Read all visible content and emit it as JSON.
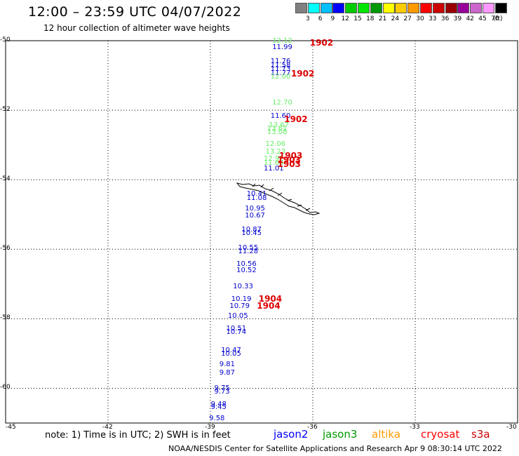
{
  "title": "12:00 – 23:59 UTC 04/07/2022",
  "subtitle": "12 hour collection of altimeter wave heights",
  "colorbar": {
    "unit": "(ft)",
    "colors": [
      "#808080",
      "#00ffff",
      "#00bfff",
      "#0000ff",
      "#00cc00",
      "#00e600",
      "#009900",
      "#ffff00",
      "#ffcc00",
      "#ff9900",
      "#ff0000",
      "#cc0000",
      "#990000",
      "#990099",
      "#cc66cc",
      "#ff99ff",
      "#000000"
    ],
    "labels": [
      "3",
      "6",
      "9",
      "12",
      "15",
      "18",
      "21",
      "24",
      "27",
      "30",
      "33",
      "36",
      "39",
      "42",
      "45",
      "70"
    ]
  },
  "axes": {
    "lat_labels": [
      "-50",
      "-52",
      "-54",
      "-56",
      "-58",
      "-60"
    ],
    "lon_labels": [
      "-45",
      "-42",
      "-39",
      "-36",
      "-33",
      "-30"
    ]
  },
  "note": "note:  1) Time is in UTC;  2) SWH is in feet",
  "legend": [
    {
      "name": "jason2",
      "color": "#0000ff"
    },
    {
      "name": "jason3",
      "color": "#009900"
    },
    {
      "name": "altika",
      "color": "#ff9900"
    },
    {
      "name": "cryosat",
      "color": "#ff0000"
    },
    {
      "name": "s3a",
      "color": "#cc0000"
    }
  ],
  "footer": "NOAA/NESDIS Center for Satellite Applications and Research    Apr  9 08:30:14 UTC 2022",
  "observations": [
    {
      "lon": -36.9,
      "lat": -50.05,
      "t": "12.12",
      "c": "#66ee66"
    },
    {
      "lon": -36.9,
      "lat": -50.22,
      "t": "11.99",
      "c": "#0000cc"
    },
    {
      "lon": -36.95,
      "lat": -50.62,
      "t": "11.76",
      "c": "#0000cc"
    },
    {
      "lon": -36.95,
      "lat": -50.74,
      "t": "11.58",
      "c": "#0000cc"
    },
    {
      "lon": -36.95,
      "lat": -50.84,
      "t": "11.73",
      "c": "#0000cc"
    },
    {
      "lon": -36.95,
      "lat": -50.96,
      "t": "11.77",
      "c": "#0000cc"
    },
    {
      "lon": -36.95,
      "lat": -51.07,
      "t": "12.00",
      "c": "#66ee66"
    },
    {
      "lon": -36.9,
      "lat": -51.82,
      "t": "12.70",
      "c": "#66ee66"
    },
    {
      "lon": -36.95,
      "lat": -52.2,
      "t": "11.60",
      "c": "#0000cc"
    },
    {
      "lon": -37.0,
      "lat": -52.47,
      "t": "13.67",
      "c": "#66ee66"
    },
    {
      "lon": -37.05,
      "lat": -52.57,
      "t": "13.61",
      "c": "#66ee66"
    },
    {
      "lon": -37.05,
      "lat": -52.67,
      "t": "13.08",
      "c": "#66ee66"
    },
    {
      "lon": -37.1,
      "lat": -53.0,
      "t": "12.06",
      "c": "#66ee66"
    },
    {
      "lon": -37.1,
      "lat": -53.23,
      "t": "13.23",
      "c": "#66ee66"
    },
    {
      "lon": -37.15,
      "lat": -53.43,
      "t": "12.92",
      "c": "#66ee66"
    },
    {
      "lon": -37.15,
      "lat": -53.55,
      "t": "11.64",
      "c": "#66ee66"
    },
    {
      "lon": -37.15,
      "lat": -53.72,
      "t": "11.01",
      "c": "#0000cc"
    },
    {
      "lon": -37.65,
      "lat": -54.45,
      "t": "10.41",
      "c": "#0000cc"
    },
    {
      "lon": -37.65,
      "lat": -54.56,
      "t": "11.08",
      "c": "#0000cc"
    },
    {
      "lon": -37.7,
      "lat": -54.87,
      "t": "10.95",
      "c": "#0000cc"
    },
    {
      "lon": -37.7,
      "lat": -55.07,
      "t": "10.67",
      "c": "#0000cc"
    },
    {
      "lon": -37.8,
      "lat": -55.47,
      "t": "10.87",
      "c": "#0000cc"
    },
    {
      "lon": -37.8,
      "lat": -55.57,
      "t": "10.45",
      "c": "#0000cc"
    },
    {
      "lon": -37.9,
      "lat": -56.0,
      "t": "10.55",
      "c": "#0000cc"
    },
    {
      "lon": -37.9,
      "lat": -56.1,
      "t": "11.28",
      "c": "#0000cc"
    },
    {
      "lon": -37.95,
      "lat": -56.45,
      "t": "10.56",
      "c": "#0000cc"
    },
    {
      "lon": -37.95,
      "lat": -56.65,
      "t": "10.52",
      "c": "#0000cc"
    },
    {
      "lon": -38.05,
      "lat": -57.1,
      "t": "10.33",
      "c": "#0000cc"
    },
    {
      "lon": -38.1,
      "lat": -57.46,
      "t": "10.19",
      "c": "#0000cc"
    },
    {
      "lon": -38.15,
      "lat": -57.66,
      "t": "10.79",
      "c": "#0000cc"
    },
    {
      "lon": -38.2,
      "lat": -57.96,
      "t": "10.05",
      "c": "#0000cc"
    },
    {
      "lon": -38.25,
      "lat": -58.32,
      "t": "10.51",
      "c": "#0000cc"
    },
    {
      "lon": -38.25,
      "lat": -58.42,
      "t": "10.74",
      "c": "#0000cc"
    },
    {
      "lon": -38.4,
      "lat": -58.94,
      "t": "10.47",
      "c": "#0000cc"
    },
    {
      "lon": -38.4,
      "lat": -59.04,
      "t": "10.05",
      "c": "#0000cc"
    },
    {
      "lon": -38.45,
      "lat": -59.34,
      "t": "9.81",
      "c": "#0000cc"
    },
    {
      "lon": -38.45,
      "lat": -59.58,
      "t": "9.87",
      "c": "#0000cc"
    },
    {
      "lon": -38.6,
      "lat": -60.03,
      "t": "9.75",
      "c": "#0000cc"
    },
    {
      "lon": -38.6,
      "lat": -60.13,
      "t": "9.73",
      "c": "#0000cc"
    },
    {
      "lon": -38.7,
      "lat": -60.5,
      "t": "9.48",
      "c": "#0000cc"
    },
    {
      "lon": -38.7,
      "lat": -60.58,
      "t": "9.45",
      "c": "#0000cc"
    },
    {
      "lon": -38.75,
      "lat": -60.9,
      "t": "9.58",
      "c": "#0000cc"
    }
  ],
  "cryosat_labels": [
    {
      "lon": -35.8,
      "lat": -50.08,
      "t": "1902"
    },
    {
      "lon": -36.35,
      "lat": -50.97,
      "t": "1902"
    },
    {
      "lon": -36.55,
      "lat": -52.28,
      "t": "1902"
    },
    {
      "lon": -36.7,
      "lat": -53.34,
      "t": "1903"
    },
    {
      "lon": -36.75,
      "lat": -53.46,
      "t": "1903"
    },
    {
      "lon": -36.75,
      "lat": -53.58,
      "t": "1903"
    },
    {
      "lon": -37.3,
      "lat": -57.45,
      "t": "1904"
    },
    {
      "lon": -37.35,
      "lat": -57.65,
      "t": "1904"
    }
  ]
}
